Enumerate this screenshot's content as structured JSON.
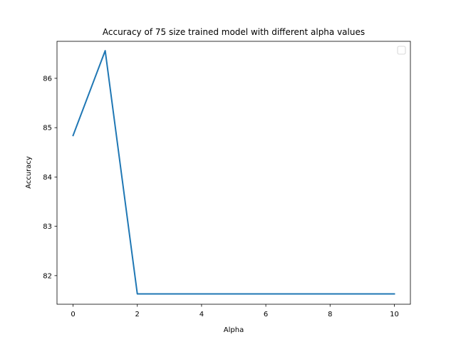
{
  "chart_data": {
    "type": "line",
    "title": "Accuracy of 75 size trained model with different alpha values",
    "xlabel": "Alpha",
    "ylabel": "Accuracy",
    "xlim": [
      -0.5,
      10.5
    ],
    "ylim": [
      81.42,
      86.75
    ],
    "xticks": [
      0,
      2,
      4,
      6,
      8,
      10
    ],
    "yticks": [
      82,
      83,
      84,
      85,
      86
    ],
    "grid": false,
    "legend": "top-right (empty)",
    "series": [
      {
        "color": "#1f77b4",
        "x": [
          0,
          1,
          2,
          3,
          4,
          5,
          6,
          7,
          8,
          9,
          10
        ],
        "y": [
          84.84,
          86.56,
          81.63,
          81.63,
          81.63,
          81.63,
          81.63,
          81.63,
          81.63,
          81.63,
          81.63
        ]
      }
    ]
  }
}
